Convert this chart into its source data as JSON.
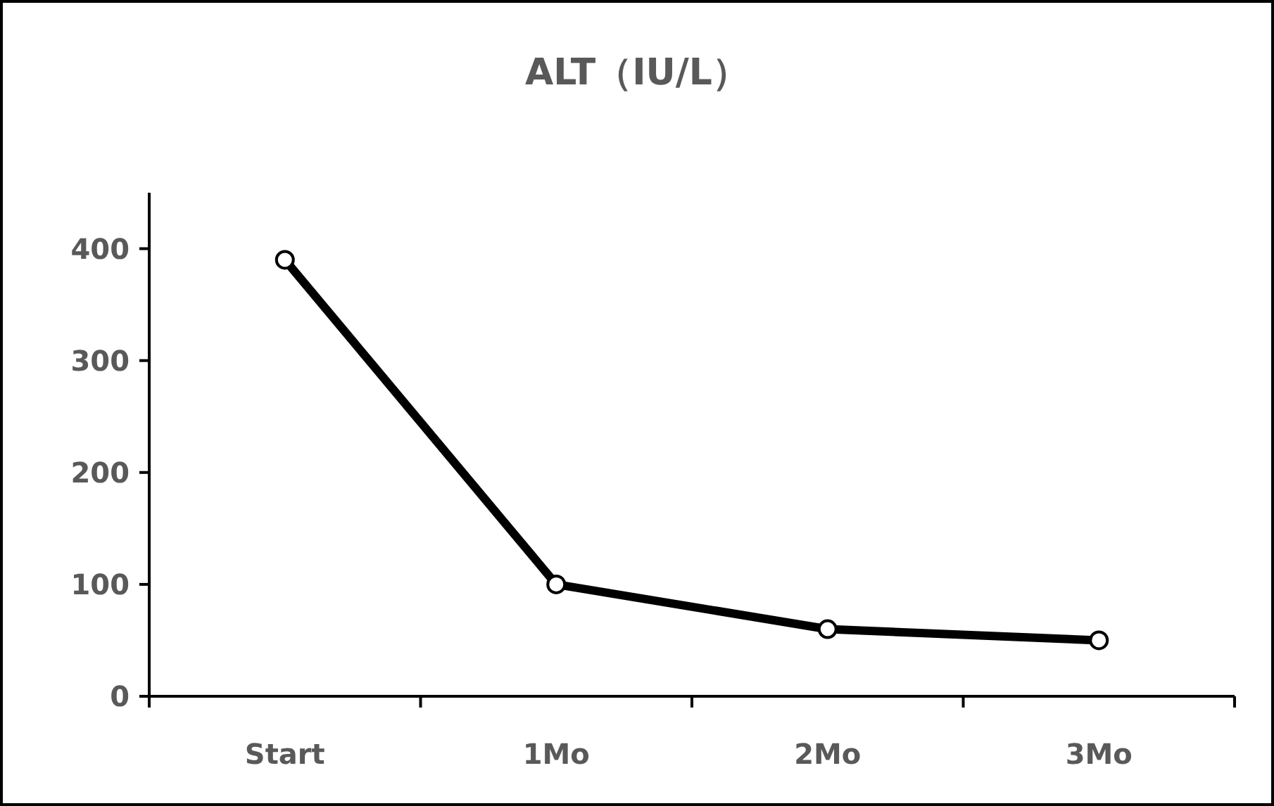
{
  "chart_data": {
    "type": "line",
    "title": "ALT（IU/L）",
    "categories": [
      "Start",
      "1Mo",
      "2Mo",
      "3Mo"
    ],
    "values": [
      390,
      100,
      60,
      50
    ],
    "color": "#000000",
    "ylim": [
      0,
      450
    ],
    "yticks": [
      0,
      100,
      200,
      300,
      400
    ],
    "marker": "circle",
    "line_style": "solid"
  }
}
